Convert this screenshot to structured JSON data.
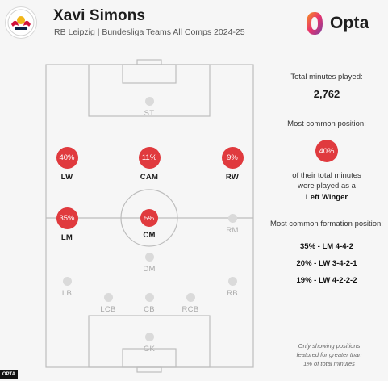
{
  "header": {
    "player_name": "Xavi Simons",
    "subtitle": "RB Leipzig | Bundesliga Teams All Comps 2024-25",
    "brand": "Opta",
    "logo_icon": "rb-leipzig-crest-icon",
    "brand_icon": "opta-logo-icon"
  },
  "colors": {
    "accent": "#e03a3e",
    "inactive_dot": "#dadada",
    "pitch_lines": "#bdbdbd"
  },
  "positions": [
    {
      "id": "st",
      "label": "ST",
      "pct": null
    },
    {
      "id": "lw",
      "label": "LW",
      "pct": "40%"
    },
    {
      "id": "cam",
      "label": "CAM",
      "pct": "11%"
    },
    {
      "id": "rw",
      "label": "RW",
      "pct": "9%"
    },
    {
      "id": "lm",
      "label": "LM",
      "pct": "35%"
    },
    {
      "id": "cm",
      "label": "CM",
      "pct": "5%"
    },
    {
      "id": "rm",
      "label": "RM",
      "pct": null
    },
    {
      "id": "dm",
      "label": "DM",
      "pct": null
    },
    {
      "id": "lb",
      "label": "LB",
      "pct": null
    },
    {
      "id": "rb",
      "label": "RB",
      "pct": null
    },
    {
      "id": "lcb",
      "label": "LCB",
      "pct": null
    },
    {
      "id": "cb",
      "label": "CB",
      "pct": null
    },
    {
      "id": "rcb",
      "label": "RCB",
      "pct": null
    },
    {
      "id": "gk",
      "label": "GK",
      "pct": null
    }
  ],
  "summary": {
    "total_minutes_label": "Total minutes played:",
    "total_minutes_value": "2,762",
    "common_position_label": "Most common position:",
    "common_position_pct": "40%",
    "common_position_text_1": "of their total minutes",
    "common_position_text_2": "were played as a",
    "common_position_name": "Left Winger",
    "formation_label": "Most common formation position:",
    "formations": [
      "35% - LM 4-4-2",
      "20% - LW 3-4-2-1",
      "19% - LW 4-2-2-2"
    ]
  },
  "footnote": {
    "line1": "Only showing positions",
    "line2": "featured for greater than",
    "line3": "1% of total minutes"
  },
  "watermark": "OPTA"
}
